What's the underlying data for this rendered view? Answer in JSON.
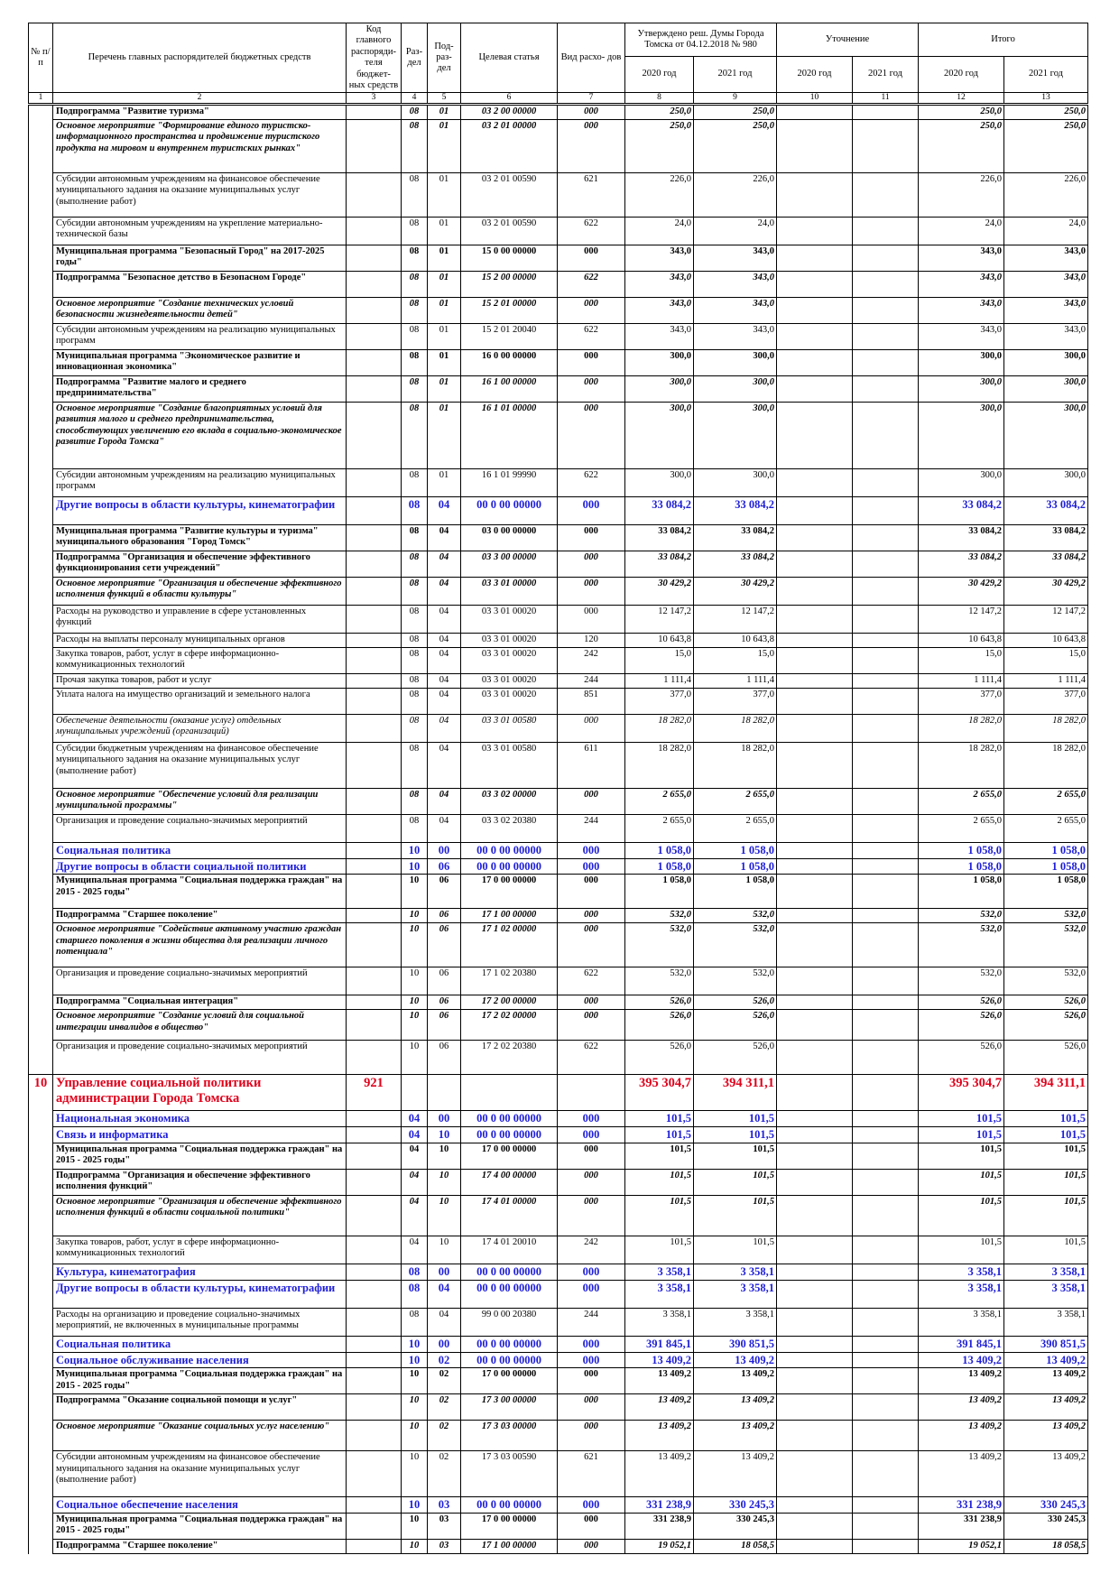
{
  "header": {
    "num_label": "№ п/п",
    "name_label": "Перечень главных распорядителей бюджетных средств",
    "code_label": "Код главного распоряди- теля бюджет- ных средств",
    "rz_label": "Раз- дел",
    "prz_label": "Под- раз- дел",
    "cs_label": "Целевая статья",
    "vr_label": "Вид расхо- дов",
    "approved_label": "Утверждено реш. Думы Города Томска от 04.12.2018 № 980",
    "clarification_label": "Уточнение",
    "total_label": "Итого",
    "years": [
      "2020 год",
      "2021 год",
      "2020 год",
      "2021 год",
      "2020 год",
      "2021 год"
    ],
    "column_numbers": [
      "1",
      "2",
      "3",
      "4",
      "5",
      "6",
      "7",
      "8",
      "9",
      "10",
      "11",
      "12",
      "13"
    ]
  },
  "table": {
    "rows": [
      {
        "style": "sub",
        "name": "Подпрограмма \"Развитие туризма\"",
        "rz": "08",
        "prz": "01",
        "cs": "03 2 00 00000",
        "vr": "000",
        "y20": "250,0",
        "y21": "250,0",
        "t20": "250,0",
        "t21": "250,0"
      },
      {
        "style": "om",
        "name": "Основное мероприятие \"Формирование единого туристско-информационного пространства и продвижение туристского продукта на мировом и внутреннем туристских рынках\"",
        "rz": "08",
        "prz": "01",
        "cs": "03 2 01 00000",
        "vr": "000",
        "y20": "250,0",
        "y21": "250,0",
        "t20": "250,0",
        "t21": "250,0"
      },
      {
        "style": "n",
        "name": "Субсидии автономным учреждениям на финансовое обеспечение муниципального задания на оказание муниципальных услуг (выполнение работ)",
        "rz": "08",
        "prz": "01",
        "cs": "03 2 01 00590",
        "vr": "621",
        "y20": "226,0",
        "y21": "226,0",
        "t20": "226,0",
        "t21": "226,0"
      },
      {
        "style": "n",
        "name": "Субсидии автономным учреждениям на укрепление материально-технической базы",
        "rz": "08",
        "prz": "01",
        "cs": "03 2 01 00590",
        "vr": "622",
        "y20": "24,0",
        "y21": "24,0",
        "t20": "24,0",
        "t21": "24,0"
      },
      {
        "style": "prog",
        "name": "Муниципальная программа \"Безопасный Город\" на 2017-2025 годы\"",
        "rz": "08",
        "prz": "01",
        "cs": "15 0 00 00000",
        "vr": "000",
        "y20": "343,0",
        "y21": "343,0",
        "t20": "343,0",
        "t21": "343,0"
      },
      {
        "style": "sub",
        "name": "Подпрограмма \"Безопасное детство в Безопасном Городе\"",
        "rz": "08",
        "prz": "01",
        "cs": "15 2 00 00000",
        "vr": "622",
        "y20": "343,0",
        "y21": "343,0",
        "t20": "343,0",
        "t21": "343,0"
      },
      {
        "style": "om",
        "name": "Основное мероприятие \"Создание технических условий безопасности жизнедеятельности детей\"",
        "rz": "08",
        "prz": "01",
        "cs": "15 2 01 00000",
        "vr": "000",
        "y20": "343,0",
        "y21": "343,0",
        "t20": "343,0",
        "t21": "343,0"
      },
      {
        "style": "n",
        "name": "Субсидии автономным учреждениям на реализацию муниципальных программ",
        "rz": "08",
        "prz": "01",
        "cs": "15 2 01 20040",
        "vr": "622",
        "y20": "343,0",
        "y21": "343,0",
        "t20": "343,0",
        "t21": "343,0"
      },
      {
        "style": "prog",
        "name": "Муниципальная программа \"Экономическое развитие и инновационная экономика\"",
        "rz": "08",
        "prz": "01",
        "cs": "16 0 00 00000",
        "vr": "000",
        "y20": "300,0",
        "y21": "300,0",
        "t20": "300,0",
        "t21": "300,0"
      },
      {
        "style": "sub",
        "name": "Подпрограмма \"Развитие малого и среднего предпринимательства\"",
        "rz": "08",
        "prz": "01",
        "cs": "16 1 00 00000",
        "vr": "000",
        "y20": "300,0",
        "y21": "300,0",
        "t20": "300,0",
        "t21": "300,0"
      },
      {
        "style": "om",
        "name": "Основное мероприятие \"Создание благоприятных условий для развития малого и среднего предпринимательства, способствующих увеличению его вклада в социально-экономическое развитие Города Томска\"",
        "rz": "08",
        "prz": "01",
        "cs": "16 1 01 00000",
        "vr": "000",
        "y20": "300,0",
        "y21": "300,0",
        "t20": "300,0",
        "t21": "300,0"
      },
      {
        "style": "n",
        "name": "Субсидии автономным учреждениям на реализацию муниципальных программ",
        "rz": "08",
        "prz": "01",
        "cs": "16 1 01 99990",
        "vr": "622",
        "y20": "300,0",
        "y21": "300,0",
        "t20": "300,0",
        "t21": "300,0"
      },
      {
        "style": "sec",
        "name": "Другие вопросы в области культуры, кинематографии",
        "rz": "08",
        "prz": "04",
        "cs": "00 0 00 00000",
        "vr": "000",
        "y20": "33 084,2",
        "y21": "33 084,2",
        "t20": "33 084,2",
        "t21": "33 084,2"
      },
      {
        "style": "prog",
        "name": "Муниципальная программа \"Развитие культуры и туризма\" муниципального образования \"Город Томск\"",
        "rz": "08",
        "prz": "04",
        "cs": "03 0 00 00000",
        "vr": "000",
        "y20": "33 084,2",
        "y21": "33 084,2",
        "t20": "33 084,2",
        "t21": "33 084,2"
      },
      {
        "style": "sub",
        "name": "Подпрограмма \"Организация и обеспечение эффективного функционирования сети учреждений\"",
        "rz": "08",
        "prz": "04",
        "cs": "03 3 00 00000",
        "vr": "000",
        "y20": "33 084,2",
        "y21": "33 084,2",
        "t20": "33 084,2",
        "t21": "33 084,2"
      },
      {
        "style": "om",
        "name": "Основное мероприятие \"Организация и обеспечение эффективного исполнения функций в области культуры\"",
        "rz": "08",
        "prz": "04",
        "cs": "03 3 01 00000",
        "vr": "000",
        "y20": "30 429,2",
        "y21": "30 429,2",
        "t20": "30 429,2",
        "t21": "30 429,2"
      },
      {
        "style": "n",
        "name": "Расходы на руководство и управление в сфере установленных функций",
        "rz": "08",
        "prz": "04",
        "cs": "03 3 01 00020",
        "vr": "000",
        "y20": "12 147,2",
        "y21": "12 147,2",
        "t20": "12 147,2",
        "t21": "12 147,2"
      },
      {
        "style": "n",
        "name": "Расходы на выплаты персоналу муниципальных органов",
        "rz": "08",
        "prz": "04",
        "cs": "03 3 01 00020",
        "vr": "120",
        "y20": "10 643,8",
        "y21": "10 643,8",
        "t20": "10 643,8",
        "t21": "10 643,8"
      },
      {
        "style": "n",
        "name": "Закупка товаров, работ, услуг в сфере информационно-коммуникационных технологий",
        "rz": "08",
        "prz": "04",
        "cs": "03 3 01 00020",
        "vr": "242",
        "y20": "15,0",
        "y21": "15,0",
        "t20": "15,0",
        "t21": "15,0"
      },
      {
        "style": "n",
        "name": "Прочая закупка товаров, работ и услуг",
        "rz": "08",
        "prz": "04",
        "cs": "03 3 01 00020",
        "vr": "244",
        "y20": "1 111,4",
        "y21": "1 111,4",
        "t20": "1 111,4",
        "t21": "1 111,4"
      },
      {
        "style": "n",
        "name": "Уплата налога на имущество организаций и земельного налога",
        "rz": "08",
        "prz": "04",
        "cs": "03 3 01 00020",
        "vr": "851",
        "y20": "377,0",
        "y21": "377,0",
        "t20": "377,0",
        "t21": "377,0"
      },
      {
        "style": "it",
        "name": "Обеспечение деятельности (оказание услуг) отдельных муниципальных учреждений (организаций)",
        "rz": "08",
        "prz": "04",
        "cs": "03 3 01 00580",
        "vr": "000",
        "y20": "18 282,0",
        "y21": "18 282,0",
        "t20": "18 282,0",
        "t21": "18 282,0"
      },
      {
        "style": "n",
        "name": "Субсидии бюджетным учреждениям на финансовое обеспечение муниципального задания на оказание муниципальных услуг (выполнение работ)",
        "rz": "08",
        "prz": "04",
        "cs": "03 3 01 00580",
        "vr": "611",
        "y20": "18 282,0",
        "y21": "18 282,0",
        "t20": "18 282,0",
        "t21": "18 282,0"
      },
      {
        "style": "om",
        "name": "Основное мероприятие \"Обеспечение условий для реализации муниципальной программы\"",
        "rz": "08",
        "prz": "04",
        "cs": "03 3 02 00000",
        "vr": "000",
        "y20": "2 655,0",
        "y21": "2 655,0",
        "t20": "2 655,0",
        "t21": "2 655,0"
      },
      {
        "style": "n",
        "name": "Организация и проведение социально-значимых мероприятий",
        "rz": "08",
        "prz": "04",
        "cs": "03 3 02 20380",
        "vr": "244",
        "y20": "2 655,0",
        "y21": "2 655,0",
        "t20": "2 655,0",
        "t21": "2 655,0"
      },
      {
        "style": "sec",
        "name": "Социальная политика",
        "rz": "10",
        "prz": "00",
        "cs": "00 0 00 00000",
        "vr": "000",
        "y20": "1 058,0",
        "y21": "1 058,0",
        "t20": "1 058,0",
        "t21": "1 058,0"
      },
      {
        "style": "sec",
        "name": "Другие вопросы в области социальной политики",
        "rz": "10",
        "prz": "06",
        "cs": "00 0 00 00000",
        "vr": "000",
        "y20": "1 058,0",
        "y21": "1 058,0",
        "t20": "1 058,0",
        "t21": "1 058,0"
      },
      {
        "style": "prog",
        "name": "Муниципальная программа \"Социальная поддержка граждан\" на 2015 - 2025 годы\"",
        "rz": "10",
        "prz": "06",
        "cs": "17 0 00 00000",
        "vr": "000",
        "y20": "1 058,0",
        "y21": "1 058,0",
        "t20": "1 058,0",
        "t21": "1 058,0"
      },
      {
        "style": "sub",
        "name": "Подпрограмма \"Старшее поколение\"",
        "rz": "10",
        "prz": "06",
        "cs": "17 1 00 00000",
        "vr": "000",
        "y20": "532,0",
        "y21": "532,0",
        "t20": "532,0",
        "t21": "532,0"
      },
      {
        "style": "om",
        "name": "Основное мероприятие \"Содействие активному участию граждан старшего поколения в жизни общества для реализации личного потенциала\"",
        "rz": "10",
        "prz": "06",
        "cs": "17 1 02 00000",
        "vr": "000",
        "y20": "532,0",
        "y21": "532,0",
        "t20": "532,0",
        "t21": "532,0"
      },
      {
        "style": "n",
        "name": "Организация и проведение социально-значимых мероприятий",
        "rz": "10",
        "prz": "06",
        "cs": "17 1 02 20380",
        "vr": "622",
        "y20": "532,0",
        "y21": "532,0",
        "t20": "532,0",
        "t21": "532,0"
      },
      {
        "style": "sub",
        "name": "Подпрограмма \"Социальная интеграция\"",
        "rz": "10",
        "prz": "06",
        "cs": "17 2 00 00000",
        "vr": "000",
        "y20": "526,0",
        "y21": "526,0",
        "t20": "526,0",
        "t21": "526,0"
      },
      {
        "style": "om",
        "name": "Основное мероприятие \"Создание условий для социальной интеграции инвалидов в общество\"",
        "rz": "10",
        "prz": "06",
        "cs": "17 2 02 00000",
        "vr": "000",
        "y20": "526,0",
        "y21": "526,0",
        "t20": "526,0",
        "t21": "526,0"
      },
      {
        "style": "n",
        "name": "Организация и проведение социально-значимых мероприятий",
        "rz": "10",
        "prz": "06",
        "cs": "17 2 02 20380",
        "vr": "622",
        "y20": "526,0",
        "y21": "526,0",
        "t20": "526,0",
        "t21": "526,0"
      },
      {
        "style": "main",
        "num": "10",
        "name": "Управление социальной политики администрации Города Томска",
        "code": "921",
        "y20": "395 304,7",
        "y21": "394 311,1",
        "t20": "395 304,7",
        "t21": "394 311,1"
      },
      {
        "style": "sec",
        "name": "Национальная экономика",
        "rz": "04",
        "prz": "00",
        "cs": "00 0 00 00000",
        "vr": "000",
        "y20": "101,5",
        "y21": "101,5",
        "t20": "101,5",
        "t21": "101,5"
      },
      {
        "style": "sec",
        "name": "Связь и информатика",
        "rz": "04",
        "prz": "10",
        "cs": "00 0 00 00000",
        "vr": "000",
        "y20": "101,5",
        "y21": "101,5",
        "t20": "101,5",
        "t21": "101,5"
      },
      {
        "style": "prog",
        "name": "Муниципальная программа \"Социальная поддержка граждан\" на 2015 - 2025 годы\"",
        "rz": "04",
        "prz": "10",
        "cs": "17 0 00 00000",
        "vr": "000",
        "y20": "101,5",
        "y21": "101,5",
        "t20": "101,5",
        "t21": "101,5"
      },
      {
        "style": "sub",
        "name": "Подпрограмма \"Организация и обеспечение эффективного исполнения функций\"",
        "rz": "04",
        "prz": "10",
        "cs": "17 4 00 00000",
        "vr": "000",
        "y20": "101,5",
        "y21": "101,5",
        "t20": "101,5",
        "t21": "101,5"
      },
      {
        "style": "om",
        "name": "Основное мероприятие \"Организация и обеспечение эффективного исполнения функций в области социальной политики\"",
        "rz": "04",
        "prz": "10",
        "cs": "17 4 01 00000",
        "vr": "000",
        "y20": "101,5",
        "y21": "101,5",
        "t20": "101,5",
        "t21": "101,5"
      },
      {
        "style": "n",
        "name": "Закупка товаров, работ, услуг в сфере информационно-коммуникационных технологий",
        "rz": "04",
        "prz": "10",
        "cs": "17 4 01 20010",
        "vr": "242",
        "y20": "101,5",
        "y21": "101,5",
        "t20": "101,5",
        "t21": "101,5"
      },
      {
        "style": "sec",
        "name": "Культура, кинематография",
        "rz": "08",
        "prz": "00",
        "cs": "00 0 00 00000",
        "vr": "000",
        "y20": "3 358,1",
        "y21": "3 358,1",
        "t20": "3 358,1",
        "t21": "3 358,1"
      },
      {
        "style": "sec",
        "name": "Другие вопросы в области культуры, кинематографии",
        "rz": "08",
        "prz": "04",
        "cs": "00 0 00 00000",
        "vr": "000",
        "y20": "3 358,1",
        "y21": "3 358,1",
        "t20": "3 358,1",
        "t21": "3 358,1"
      },
      {
        "style": "n",
        "name": "Расходы на организацию и проведение социально-значимых мероприятий, не включенных в муниципальные программы",
        "rz": "08",
        "prz": "04",
        "cs": "99 0 00 20380",
        "vr": "244",
        "y20": "3 358,1",
        "y21": "3 358,1",
        "t20": "3 358,1",
        "t21": "3 358,1"
      },
      {
        "style": "sec",
        "name": "Социальная политика",
        "rz": "10",
        "prz": "00",
        "cs": "00 0 00 00000",
        "vr": "000",
        "y20": "391 845,1",
        "y21": "390 851,5",
        "t20": "391 845,1",
        "t21": "390 851,5"
      },
      {
        "style": "sec",
        "name": "Социальное обслуживание населения",
        "rz": "10",
        "prz": "02",
        "cs": "00 0 00 00000",
        "vr": "000",
        "y20": "13 409,2",
        "y21": "13 409,2",
        "t20": "13 409,2",
        "t21": "13 409,2"
      },
      {
        "style": "prog",
        "name": "Муниципальная программа \"Социальная поддержка граждан\" на 2015 - 2025 годы\"",
        "rz": "10",
        "prz": "02",
        "cs": "17 0 00 00000",
        "vr": "000",
        "y20": "13 409,2",
        "y21": "13 409,2",
        "t20": "13 409,2",
        "t21": "13 409,2"
      },
      {
        "style": "sub",
        "name": "Подпрограмма \"Оказание социальной помощи и услуг\"",
        "rz": "10",
        "prz": "02",
        "cs": "17 3 00 00000",
        "vr": "000",
        "y20": "13 409,2",
        "y21": "13 409,2",
        "t20": "13 409,2",
        "t21": "13 409,2"
      },
      {
        "style": "om",
        "name": "Основное мероприятие \"Оказание социальных услуг населению\"",
        "rz": "10",
        "prz": "02",
        "cs": "17 3 03 00000",
        "vr": "000",
        "y20": "13 409,2",
        "y21": "13 409,2",
        "t20": "13 409,2",
        "t21": "13 409,2"
      },
      {
        "style": "n",
        "name": "Субсидии автономным учреждениям на финансовое обеспечение муниципального задания на оказание муниципальных услуг (выполнение работ)",
        "rz": "10",
        "prz": "02",
        "cs": "17 3 03 00590",
        "vr": "621",
        "y20": "13 409,2",
        "y21": "13 409,2",
        "t20": "13 409,2",
        "t21": "13 409,2"
      },
      {
        "style": "sec",
        "name": "Социальное обеспечение населения",
        "rz": "10",
        "prz": "03",
        "cs": "00 0 00 00000",
        "vr": "000",
        "y20": "331 238,9",
        "y21": "330 245,3",
        "t20": "331 238,9",
        "t21": "330 245,3"
      },
      {
        "style": "prog",
        "name": "Муниципальная программа \"Социальная поддержка граждан\" на 2015 - 2025 годы\"",
        "rz": "10",
        "prz": "03",
        "cs": "17 0 00 00000",
        "vr": "000",
        "y20": "331 238,9",
        "y21": "330 245,3",
        "t20": "331 238,9",
        "t21": "330 245,3"
      },
      {
        "style": "sub",
        "name": "Подпрограмма \"Старшее поколение\"",
        "rz": "10",
        "prz": "03",
        "cs": "17 1 00 00000",
        "vr": "000",
        "y20": "19 052,1",
        "y21": "18 058,5",
        "t20": "19 052,1",
        "t21": "18 058,5"
      }
    ]
  }
}
